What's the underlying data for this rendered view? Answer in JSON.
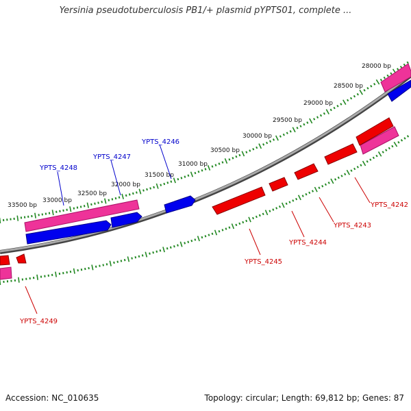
{
  "header": {
    "title": "Yersinia pseudotuberculosis PB1/+ plasmid pYPTS01, complete ..."
  },
  "footer": {
    "accession": "Accession: NC_010635",
    "topology": "Topology: circular; Length: 69,812 bp; Genes: 87"
  },
  "colors": {
    "forward_cds": "#0000ee",
    "reverse_cds": "#ee0000",
    "gene_pink": "#ee3399",
    "backbone": "#888888",
    "ticks": "#228822",
    "forward_label": "#0000cc",
    "reverse_label": "#cc0000"
  },
  "scale_labels": [
    "28000 bp",
    "28500 bp",
    "29000 bp",
    "29500 bp",
    "30000 bp",
    "30500 bp",
    "31000 bp",
    "31500 bp",
    "32000 bp",
    "32500 bp",
    "33000 bp",
    "33500 bp"
  ],
  "forward_genes": [
    "YPTS_4246",
    "YPTS_4247",
    "YPTS_4248"
  ],
  "reverse_genes": [
    "YPTS_4242",
    "YPTS_4243",
    "YPTS_4244",
    "YPTS_4245",
    "YPTS_4249"
  ]
}
